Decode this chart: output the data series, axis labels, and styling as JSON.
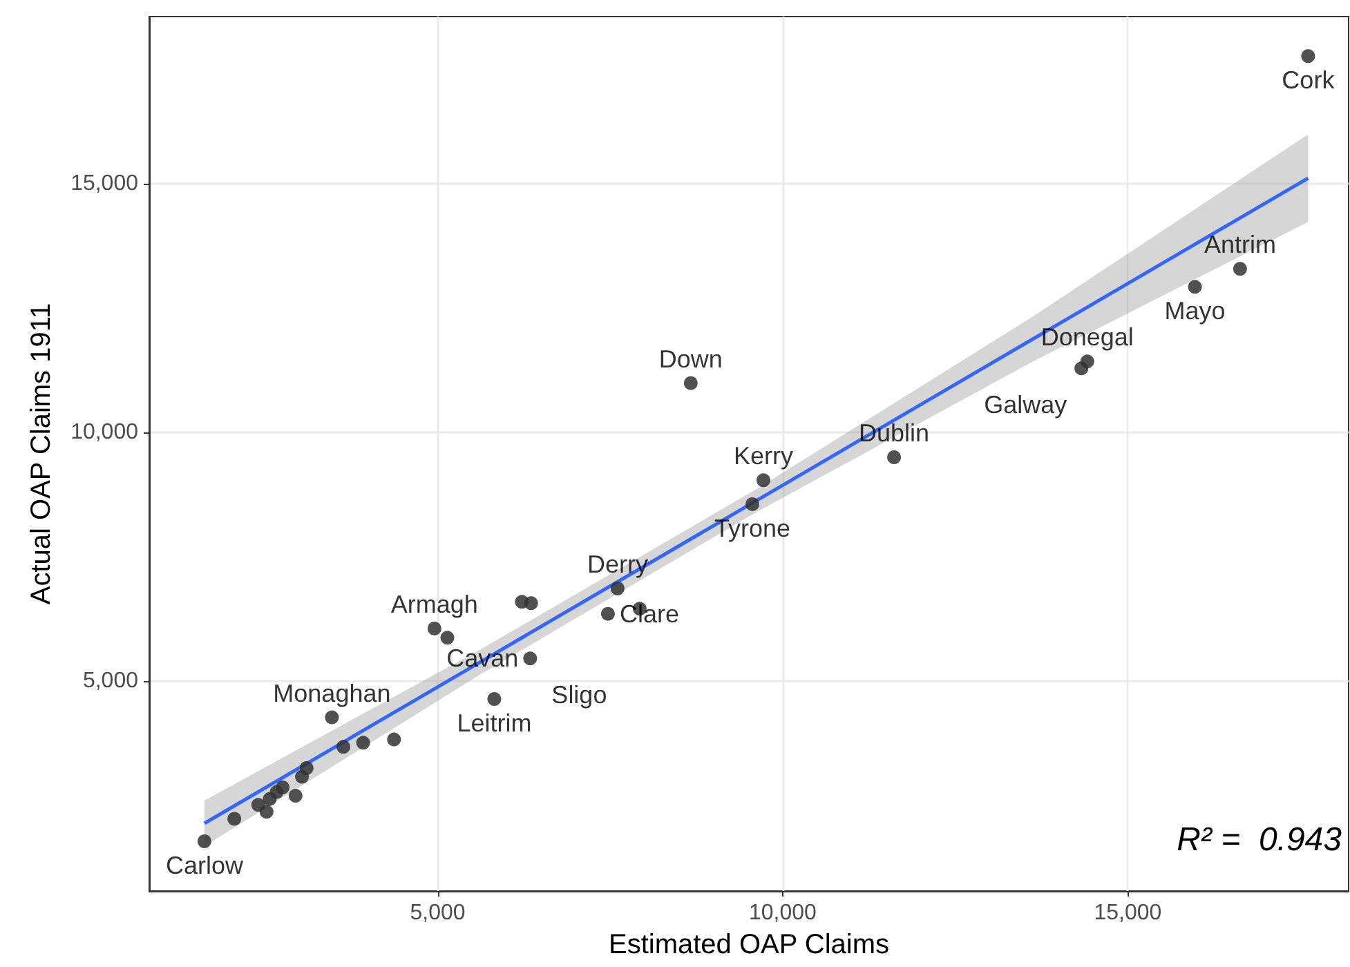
{
  "chart_data": {
    "type": "scatter",
    "xlabel": "Estimated OAP Claims",
    "ylabel": "Actual OAP Claims 1911",
    "xlim": [
      820,
      18200
    ],
    "ylim": [
      778,
      18360
    ],
    "xticks": [
      {
        "value": 5000,
        "label": "5,000"
      },
      {
        "value": 10000,
        "label": "10,000"
      },
      {
        "value": 15000,
        "label": "15,000"
      }
    ],
    "yticks": [
      {
        "value": 5000,
        "label": "5,000"
      },
      {
        "value": 10000,
        "label": "10,000"
      },
      {
        "value": 15000,
        "label": "15,000"
      }
    ],
    "grid": true,
    "marker": "circle",
    "series": [
      {
        "color": "#333333",
        "x": [
          1620,
          2053,
          2400,
          2520,
          2567,
          2667,
          2753,
          2940,
          3033,
          3100,
          3467,
          3633,
          3920,
          4367,
          4953,
          5140,
          5820,
          6340,
          6220,
          6353,
          7467,
          7607,
          7927,
          8667,
          9560,
          9720,
          11613,
          14327,
          14413,
          15973,
          16627,
          17613
        ],
        "values": [
          1778,
          2231,
          2509,
          2370,
          2630,
          2769,
          2861,
          2694,
          3075,
          3250,
          4270,
          3676,
          3759,
          3825,
          6056,
          5870,
          4639,
          5454,
          6593,
          6565,
          6352,
          6861,
          6454,
          10990,
          8556,
          9037,
          9500,
          11286,
          11425,
          12925,
          13287,
          17565
        ]
      },
      {
        "type": "line",
        "color": "#3366ff",
        "marker": "none",
        "x": [
          1620,
          5620,
          9600,
          13600,
          17613
        ],
        "values": [
          2139,
          5384,
          8612,
          11857,
          15112
        ],
        "lower": [
          1679,
          5134,
          8382,
          11407,
          14232
        ],
        "upper": [
          2599,
          5634,
          8842,
          12307,
          15992
        ]
      }
    ],
    "annotations": [
      {
        "text": "Carlow",
        "x": 1620,
        "y": 1778
      },
      {
        "text": "Monaghan",
        "x": 3467,
        "y": 4270
      },
      {
        "text": "Armagh",
        "x": 4953,
        "y": 6056
      },
      {
        "text": "Leitrim",
        "x": 5820,
        "y": 4639
      },
      {
        "text": "Cavan",
        "x": 6340,
        "y": 5454
      },
      {
        "text": "Clare",
        "x": 7467,
        "y": 6352
      },
      {
        "text": "Sligo",
        "x": 6340,
        "y": 5454
      },
      {
        "text": "Derry",
        "x": 7607,
        "y": 6861
      },
      {
        "text": "Down",
        "x": 8667,
        "y": 10990
      },
      {
        "text": "Tyrone",
        "x": 9560,
        "y": 8556
      },
      {
        "text": "Kerry",
        "x": 9720,
        "y": 9037
      },
      {
        "text": "Dublin",
        "x": 11613,
        "y": 9500
      },
      {
        "text": "Galway",
        "x": 14327,
        "y": 11286
      },
      {
        "text": "Donegal",
        "x": 14413,
        "y": 11425
      },
      {
        "text": "Mayo",
        "x": 15973,
        "y": 12925
      },
      {
        "text": "Antrim",
        "x": 16627,
        "y": 13287
      },
      {
        "text": "Cork",
        "x": 17613,
        "y": 17565
      },
      "R² =  0.943"
    ]
  }
}
